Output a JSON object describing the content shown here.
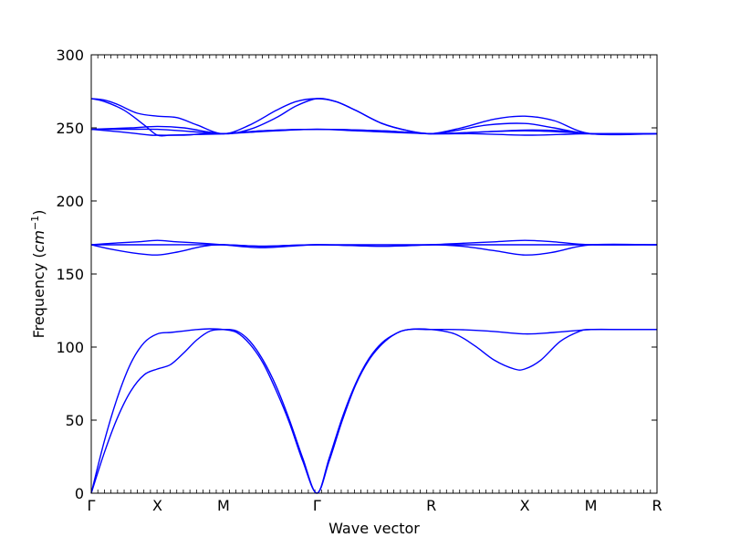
{
  "chart_data": {
    "type": "line",
    "title": "",
    "xlabel": "Wave vector",
    "ylabel": "Frequency",
    "ylabel_unit": "cm",
    "ylabel_unit_exp": "−1",
    "ylim": [
      0,
      300
    ],
    "yticks": [
      0,
      50,
      100,
      150,
      200,
      250,
      300
    ],
    "xlim": [
      0,
      4.46
    ],
    "high_symmetry_points": [
      {
        "label": "Γ",
        "x": 0
      },
      {
        "label": "X",
        "x": 0.5
      },
      {
        "label": "M",
        "x": 1.0
      },
      {
        "label": "Γ",
        "x": 1.707
      },
      {
        "label": "R",
        "x": 2.573
      },
      {
        "label": "X",
        "x": 3.28
      },
      {
        "label": "M",
        "x": 3.78
      },
      {
        "label": "R",
        "x": 4.28
      }
    ],
    "line_color": "#0000ff",
    "series": [
      {
        "values": [
          [
            0,
            0
          ],
          [
            0.1,
            28
          ],
          [
            0.2,
            52
          ],
          [
            0.3,
            70
          ],
          [
            0.4,
            81
          ],
          [
            0.5,
            85
          ],
          [
            0.6,
            88
          ],
          [
            0.7,
            96
          ],
          [
            0.8,
            105
          ],
          [
            0.9,
            111
          ],
          [
            1.0,
            112
          ],
          [
            1.1,
            111
          ],
          [
            1.2,
            104
          ],
          [
            1.3,
            91
          ],
          [
            1.4,
            73
          ],
          [
            1.5,
            50
          ],
          [
            1.6,
            24
          ],
          [
            1.707,
            0
          ],
          [
            1.8,
            24
          ],
          [
            1.9,
            52
          ],
          [
            2.0,
            75
          ],
          [
            2.1,
            92
          ],
          [
            2.2,
            103
          ],
          [
            2.3,
            109
          ],
          [
            2.4,
            112
          ],
          [
            2.573,
            112
          ],
          [
            2.75,
            109
          ],
          [
            2.9,
            101
          ],
          [
            3.05,
            91
          ],
          [
            3.2,
            85
          ],
          [
            3.28,
            85
          ],
          [
            3.4,
            91
          ],
          [
            3.55,
            104
          ],
          [
            3.7,
            111
          ],
          [
            3.78,
            112
          ],
          [
            4.0,
            112
          ],
          [
            4.28,
            112
          ]
        ]
      },
      {
        "values": [
          [
            0,
            0
          ],
          [
            0.1,
            36
          ],
          [
            0.2,
            66
          ],
          [
            0.3,
            89
          ],
          [
            0.4,
            103
          ],
          [
            0.5,
            109
          ],
          [
            0.6,
            110
          ],
          [
            0.7,
            111
          ],
          [
            0.8,
            112
          ],
          [
            0.9,
            112.5
          ],
          [
            1.0,
            112
          ],
          [
            1.1,
            110
          ],
          [
            1.2,
            102
          ],
          [
            1.3,
            89
          ],
          [
            1.4,
            70
          ],
          [
            1.5,
            48
          ],
          [
            1.6,
            22
          ],
          [
            1.707,
            0
          ],
          [
            1.8,
            22
          ],
          [
            1.9,
            50
          ],
          [
            2.0,
            74
          ],
          [
            2.1,
            91
          ],
          [
            2.2,
            102
          ],
          [
            2.3,
            109
          ],
          [
            2.4,
            112
          ],
          [
            2.573,
            112
          ],
          [
            2.75,
            112
          ],
          [
            3.0,
            111
          ],
          [
            3.28,
            109
          ],
          [
            3.5,
            110
          ],
          [
            3.78,
            112
          ],
          [
            4.0,
            112
          ],
          [
            4.28,
            112
          ]
        ]
      },
      {
        "values": [
          [
            0,
            170
          ],
          [
            0.15,
            167
          ],
          [
            0.35,
            164
          ],
          [
            0.5,
            163
          ],
          [
            0.65,
            165
          ],
          [
            0.85,
            169
          ],
          [
            1.0,
            170
          ],
          [
            1.3,
            169
          ],
          [
            1.707,
            170
          ],
          [
            2.2,
            169
          ],
          [
            2.573,
            170
          ],
          [
            2.8,
            169
          ],
          [
            3.05,
            166
          ],
          [
            3.28,
            163
          ],
          [
            3.5,
            165
          ],
          [
            3.78,
            170
          ],
          [
            4.28,
            170
          ]
        ]
      },
      {
        "values": [
          [
            0,
            170
          ],
          [
            0.15,
            171
          ],
          [
            0.35,
            172
          ],
          [
            0.5,
            173
          ],
          [
            0.65,
            172
          ],
          [
            0.85,
            171
          ],
          [
            1.0,
            170
          ],
          [
            1.3,
            168
          ],
          [
            1.707,
            170
          ],
          [
            2.2,
            169
          ],
          [
            2.573,
            170
          ],
          [
            2.8,
            171
          ],
          [
            3.05,
            172
          ],
          [
            3.28,
            173
          ],
          [
            3.5,
            172
          ],
          [
            3.78,
            170
          ],
          [
            4.28,
            170
          ]
        ]
      },
      {
        "values": [
          [
            0,
            170
          ],
          [
            0.5,
            170
          ],
          [
            1.0,
            170
          ],
          [
            1.3,
            169
          ],
          [
            1.707,
            170
          ],
          [
            2.573,
            170
          ],
          [
            3.28,
            170
          ],
          [
            3.78,
            170
          ],
          [
            4.28,
            170
          ]
        ]
      },
      {
        "values": [
          [
            0,
            249
          ],
          [
            0.25,
            247
          ],
          [
            0.45,
            245
          ],
          [
            0.5,
            245
          ],
          [
            0.7,
            245
          ],
          [
            0.85,
            246
          ],
          [
            1.0,
            246
          ],
          [
            1.3,
            248
          ],
          [
            1.707,
            249
          ],
          [
            2.2,
            248
          ],
          [
            2.573,
            246
          ],
          [
            2.9,
            246
          ],
          [
            3.28,
            245
          ],
          [
            3.55,
            245.5
          ],
          [
            3.78,
            246
          ],
          [
            4.28,
            246
          ]
        ]
      },
      {
        "values": [
          [
            0,
            249
          ],
          [
            0.3,
            250
          ],
          [
            0.5,
            251
          ],
          [
            0.7,
            250
          ],
          [
            1.0,
            246
          ],
          [
            1.2,
            249
          ],
          [
            1.4,
            257
          ],
          [
            1.55,
            265
          ],
          [
            1.707,
            270
          ],
          [
            1.85,
            268
          ],
          [
            2.0,
            262
          ],
          [
            2.2,
            253
          ],
          [
            2.4,
            248
          ],
          [
            2.573,
            246
          ],
          [
            2.75,
            248
          ],
          [
            3.0,
            252
          ],
          [
            3.28,
            253
          ],
          [
            3.5,
            250
          ],
          [
            3.78,
            246
          ],
          [
            4.28,
            246
          ]
        ]
      },
      {
        "values": [
          [
            0,
            270
          ],
          [
            0.1,
            269
          ],
          [
            0.2,
            266
          ],
          [
            0.35,
            260
          ],
          [
            0.5,
            258
          ],
          [
            0.65,
            257
          ],
          [
            0.8,
            252
          ],
          [
            1.0,
            246
          ],
          [
            1.2,
            252
          ],
          [
            1.4,
            262
          ],
          [
            1.55,
            268
          ],
          [
            1.707,
            270
          ],
          [
            1.85,
            268
          ],
          [
            2.0,
            262
          ],
          [
            2.2,
            253
          ],
          [
            2.4,
            248
          ],
          [
            2.573,
            246
          ],
          [
            2.8,
            250
          ],
          [
            3.05,
            256
          ],
          [
            3.28,
            258
          ],
          [
            3.5,
            255
          ],
          [
            3.78,
            246
          ],
          [
            4.28,
            246
          ]
        ]
      },
      {
        "values": [
          [
            0,
            270
          ],
          [
            0.1,
            268
          ],
          [
            0.25,
            262
          ],
          [
            0.4,
            252
          ],
          [
            0.5,
            245
          ],
          [
            0.6,
            245
          ],
          [
            0.8,
            245.5
          ],
          [
            1.0,
            246
          ],
          [
            1.3,
            248
          ],
          [
            1.707,
            249
          ],
          [
            2.2,
            248
          ],
          [
            2.573,
            246
          ],
          [
            2.9,
            247
          ],
          [
            3.28,
            248.5
          ],
          [
            3.55,
            248
          ],
          [
            3.78,
            246
          ],
          [
            4.28,
            246
          ]
        ]
      },
      {
        "values": [
          [
            0,
            249
          ],
          [
            0.25,
            249
          ],
          [
            0.5,
            249
          ],
          [
            0.75,
            247.5
          ],
          [
            1.0,
            246
          ],
          [
            1.2,
            247
          ],
          [
            1.4,
            248
          ],
          [
            1.707,
            249
          ],
          [
            2.0,
            248
          ],
          [
            2.573,
            246
          ],
          [
            2.9,
            247
          ],
          [
            3.28,
            248
          ],
          [
            3.6,
            247
          ],
          [
            3.78,
            246
          ],
          [
            4.28,
            246
          ]
        ]
      }
    ]
  }
}
